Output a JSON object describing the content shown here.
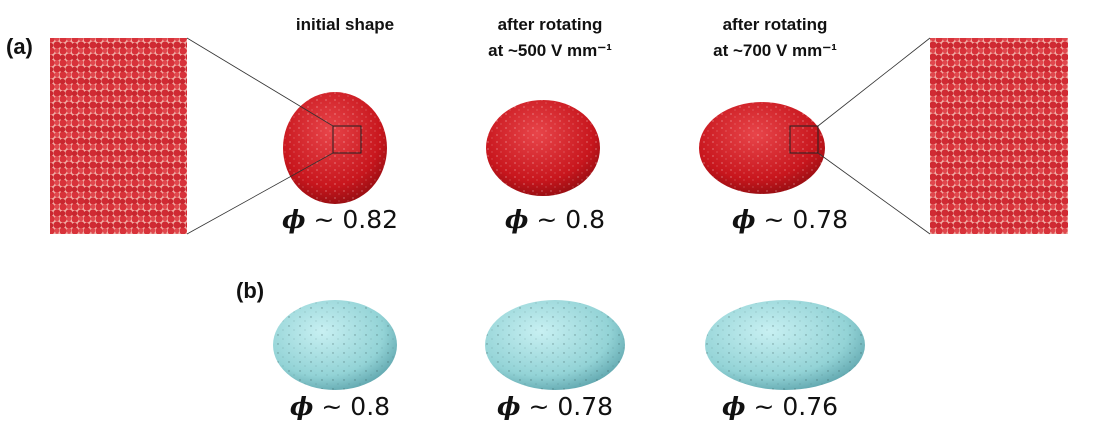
{
  "panel_a": {
    "label": "(a)",
    "columns": [
      {
        "title": [
          "initial shape"
        ],
        "symbol": "ϕ",
        "text": " ~ 0.82"
      },
      {
        "title": [
          "after rotating",
          "at ~500 V mm⁻¹"
        ],
        "symbol": "ϕ",
        "text": " ~ 0.8"
      },
      {
        "title": [
          "after rotating",
          "at ~700 V mm⁻¹"
        ],
        "symbol": "ϕ",
        "text": " ~ 0.78"
      }
    ]
  },
  "panel_b": {
    "label": "(b)",
    "columns": [
      {
        "symbol": "ϕ",
        "text": " ~ 0.8"
      },
      {
        "symbol": "ϕ",
        "text": " ~ 0.78"
      },
      {
        "symbol": "ϕ",
        "text": " ~ 0.76"
      }
    ]
  }
}
